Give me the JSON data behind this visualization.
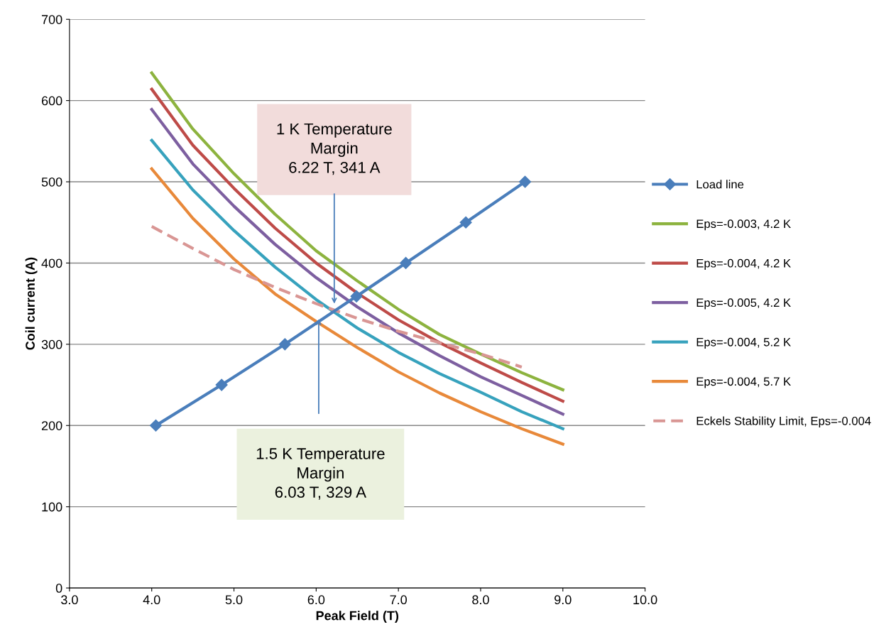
{
  "chart_data": {
    "type": "line",
    "xlabel": "Peak Field (T)",
    "ylabel": "Coil current (A)",
    "xlim": [
      3,
      10
    ],
    "ylim": [
      0,
      700
    ],
    "xticks": [
      {
        "value": 3,
        "label": "3.0"
      },
      {
        "value": 4,
        "label": "4.0"
      },
      {
        "value": 5,
        "label": "5.0"
      },
      {
        "value": 6,
        "label": "6.0"
      },
      {
        "value": 7,
        "label": "7.0"
      },
      {
        "value": 8,
        "label": "8.0"
      },
      {
        "value": 9,
        "label": "9.0"
      },
      {
        "value": 10,
        "label": "10.0"
      }
    ],
    "yticks": [
      0,
      100,
      200,
      300,
      400,
      500,
      600,
      700
    ],
    "grid": "y",
    "legend": "right",
    "series": [
      {
        "name": "Load line",
        "color": "#4a7ebb",
        "marker": "diamond",
        "line_style": "solid",
        "x": [
          4.05,
          4.85,
          5.62,
          6.49,
          7.09,
          7.82,
          8.54
        ],
        "values": [
          200,
          250,
          300,
          359,
          400,
          450,
          500
        ]
      },
      {
        "name": "Eps=-0.003, 4.2 K",
        "color": "#8db33f",
        "marker": "none",
        "line_style": "solid",
        "x": [
          4,
          4.5,
          5,
          5.5,
          6,
          6.5,
          7,
          7.5,
          8,
          8.5,
          9
        ],
        "values": [
          634,
          565,
          510,
          460,
          415,
          378,
          343,
          312,
          288,
          265,
          244
        ]
      },
      {
        "name": "Eps=-0.004, 4.2 K",
        "color": "#be4b48",
        "marker": "none",
        "line_style": "solid",
        "x": [
          4,
          4.5,
          5,
          5.5,
          6,
          6.5,
          7,
          7.5,
          8,
          8.5,
          9
        ],
        "values": [
          614,
          545,
          492,
          443,
          400,
          363,
          330,
          302,
          277,
          253,
          230
        ]
      },
      {
        "name": "Eps=-0.005, 4.2 K",
        "color": "#7d5fa0",
        "marker": "none",
        "line_style": "solid",
        "x": [
          4,
          4.5,
          5,
          5.5,
          6,
          6.5,
          7,
          7.5,
          8,
          8.5,
          9
        ],
        "values": [
          589,
          522,
          470,
          423,
          382,
          346,
          314,
          286,
          260,
          237,
          214
        ]
      },
      {
        "name": "Eps=-0.004, 5.2 K",
        "color": "#37a2bd",
        "marker": "none",
        "line_style": "solid",
        "x": [
          4,
          4.5,
          5,
          5.5,
          6,
          6.5,
          7,
          7.5,
          8,
          8.5,
          9
        ],
        "values": [
          551,
          490,
          440,
          395,
          355,
          320,
          290,
          264,
          241,
          217,
          196
        ]
      },
      {
        "name": "Eps=-0.004, 5.7 K",
        "color": "#e8893a",
        "marker": "none",
        "line_style": "solid",
        "x": [
          4,
          4.5,
          5,
          5.5,
          6,
          6.5,
          7,
          7.5,
          8,
          8.5,
          9
        ],
        "values": [
          516,
          455,
          405,
          362,
          328,
          296,
          266,
          240,
          217,
          196,
          177
        ]
      },
      {
        "name": "Eckels Stability Limit, Eps=-0.004",
        "color": "#d99694",
        "marker": "none",
        "line_style": "dashed",
        "x": [
          4,
          4.5,
          5,
          5.5,
          6,
          6.5,
          7,
          7.5,
          8,
          8.5
        ],
        "values": [
          445,
          418,
          392,
          370,
          350,
          332,
          316,
          302,
          288,
          272
        ]
      }
    ],
    "annotations": [
      "1 K Temperature\nMargin\n6.22 T, 341 A",
      "1.5 K Temperature\nMargin\n6.03 T, 329 A"
    ]
  }
}
